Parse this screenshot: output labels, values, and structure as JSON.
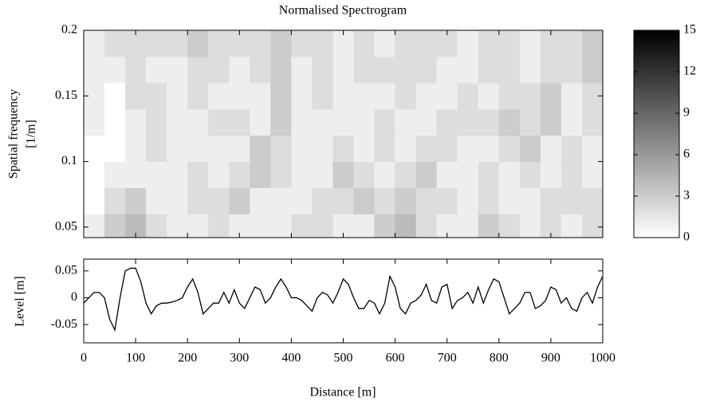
{
  "chart_data": [
    {
      "type": "heatmap",
      "title": "Normalised Spectrogram",
      "ylabel": [
        "Spatial frequency",
        "[1/m]"
      ],
      "x": [
        20,
        60,
        100,
        140,
        180,
        220,
        260,
        300,
        340,
        380,
        420,
        460,
        500,
        540,
        580,
        620,
        660,
        700,
        740,
        780,
        820,
        860,
        900,
        940,
        980
      ],
      "y": [
        0.05,
        0.07,
        0.09,
        0.11,
        0.13,
        0.15,
        0.17,
        0.19
      ],
      "z": [
        [
          1,
          3,
          4,
          2,
          1,
          1,
          2,
          1,
          1,
          1,
          2,
          2,
          1,
          1,
          3,
          4,
          2,
          1,
          1,
          3,
          2,
          1,
          2,
          1,
          2
        ],
        [
          0,
          2,
          3,
          1,
          1,
          2,
          2,
          3,
          1,
          1,
          1,
          2,
          2,
          3,
          2,
          3,
          2,
          2,
          1,
          2,
          1,
          1,
          2,
          2,
          2
        ],
        [
          0,
          1,
          1,
          1,
          1,
          2,
          1,
          2,
          3,
          2,
          1,
          1,
          3,
          2,
          1,
          2,
          3,
          1,
          1,
          2,
          1,
          2,
          1,
          2,
          1
        ],
        [
          0,
          0,
          1,
          2,
          1,
          1,
          1,
          1,
          3,
          2,
          1,
          1,
          2,
          1,
          2,
          1,
          2,
          2,
          1,
          1,
          2,
          3,
          1,
          2,
          1
        ],
        [
          1,
          0,
          1,
          2,
          1,
          1,
          2,
          2,
          1,
          3,
          1,
          1,
          1,
          1,
          2,
          1,
          1,
          2,
          2,
          2,
          3,
          2,
          3,
          1,
          2
        ],
        [
          1,
          0,
          2,
          2,
          1,
          2,
          1,
          1,
          1,
          3,
          1,
          2,
          1,
          1,
          1,
          2,
          1,
          1,
          2,
          1,
          2,
          2,
          3,
          1,
          2
        ],
        [
          1,
          1,
          2,
          1,
          1,
          2,
          2,
          1,
          2,
          3,
          1,
          2,
          1,
          2,
          2,
          2,
          2,
          1,
          1,
          2,
          2,
          1,
          2,
          2,
          3
        ],
        [
          1,
          2,
          2,
          2,
          2,
          3,
          2,
          2,
          2,
          3,
          2,
          2,
          1,
          2,
          1,
          2,
          2,
          2,
          1,
          2,
          2,
          1,
          2,
          2,
          3
        ]
      ],
      "xlim": [
        0,
        1000
      ],
      "xticks": [
        0,
        100,
        200,
        300,
        400,
        500,
        600,
        700,
        800,
        900,
        1000
      ],
      "ylim": [
        0.042,
        0.2
      ],
      "yticks": [
        0.05,
        0.1,
        0.15,
        0.2
      ],
      "clim": [
        0,
        15
      ],
      "cticks": [
        0,
        3,
        6,
        9,
        12,
        15
      ]
    },
    {
      "type": "line",
      "xlabel": "Distance [m]",
      "ylabel": "Level [m]",
      "color": "#000000",
      "x": [
        0,
        10,
        20,
        30,
        40,
        50,
        60,
        70,
        80,
        90,
        100,
        110,
        120,
        130,
        140,
        150,
        160,
        170,
        180,
        190,
        200,
        210,
        220,
        230,
        240,
        250,
        260,
        270,
        280,
        290,
        300,
        310,
        320,
        330,
        340,
        350,
        360,
        370,
        380,
        390,
        400,
        410,
        420,
        430,
        440,
        450,
        460,
        470,
        480,
        490,
        500,
        510,
        520,
        530,
        540,
        550,
        560,
        570,
        580,
        590,
        600,
        610,
        620,
        630,
        640,
        650,
        660,
        670,
        680,
        690,
        700,
        710,
        720,
        730,
        740,
        750,
        760,
        770,
        780,
        790,
        800,
        810,
        820,
        830,
        840,
        850,
        860,
        870,
        880,
        890,
        900,
        910,
        920,
        930,
        940,
        950,
        960,
        970,
        980,
        990,
        1000
      ],
      "values": [
        -0.01,
        0,
        0.01,
        0.01,
        0,
        -0.04,
        -0.06,
        0,
        0.05,
        0.055,
        0.055,
        0.03,
        -0.01,
        -0.03,
        -0.015,
        -0.01,
        -0.01,
        -0.008,
        -0.005,
        0,
        0.02,
        0.035,
        0.01,
        -0.03,
        -0.02,
        -0.01,
        -0.01,
        0.01,
        -0.01,
        0.015,
        -0.01,
        -0.02,
        0,
        0.02,
        0.015,
        -0.01,
        0,
        0.02,
        0.035,
        0.02,
        0,
        0,
        -0.005,
        -0.015,
        -0.025,
        0,
        0.01,
        0.005,
        -0.01,
        0.01,
        0.035,
        0.025,
        0,
        -0.02,
        -0.02,
        -0.005,
        -0.01,
        -0.03,
        -0.01,
        0.04,
        0.02,
        -0.02,
        -0.03,
        -0.01,
        -0.005,
        0.005,
        0.025,
        -0.005,
        -0.01,
        0.02,
        0.025,
        -0.02,
        -0.005,
        0,
        0.01,
        -0.01,
        0.02,
        -0.01,
        0.015,
        0.035,
        0.03,
        0,
        -0.03,
        -0.02,
        -0.01,
        0.01,
        0.01,
        -0.02,
        -0.015,
        -0.005,
        0.02,
        0.015,
        -0.01,
        0,
        -0.02,
        -0.025,
        0,
        0.01,
        -0.01,
        0.02,
        0.04
      ],
      "xlim": [
        0,
        1000
      ],
      "xticks": [
        0,
        100,
        200,
        300,
        400,
        500,
        600,
        700,
        800,
        900,
        1000
      ],
      "ylim": [
        -0.084,
        0.072
      ],
      "yticks": [
        -0.05,
        0,
        0.05
      ]
    }
  ]
}
